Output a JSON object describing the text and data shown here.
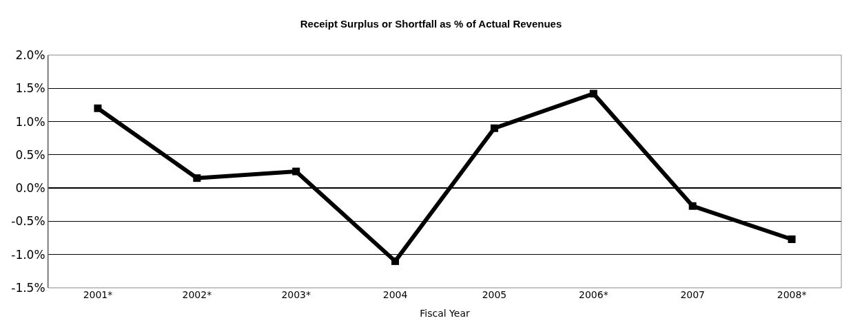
{
  "chart_data": {
    "type": "line",
    "title": "Receipt Surplus or Shortfall as % of Actual Revenues",
    "xlabel": "Fiscal Year",
    "categories": [
      "2001*",
      "2002*",
      "2003*",
      "2004",
      "2005",
      "2006*",
      "2007",
      "2008*"
    ],
    "series": [
      {
        "color": "#000000",
        "values": [
          1.2,
          0.15,
          0.25,
          -1.1,
          0.9,
          1.42,
          -0.27,
          -0.77
        ]
      }
    ],
    "ylim": [
      -1.5,
      2.0
    ],
    "yticks": [
      {
        "value": -1.5,
        "label": "-1.5%"
      },
      {
        "value": -1.0,
        "label": "-1.0%"
      },
      {
        "value": -0.5,
        "label": "-0.5%"
      },
      {
        "value": 0.0,
        "label": "0.0%"
      },
      {
        "value": 0.5,
        "label": "0.5%"
      },
      {
        "value": 1.0,
        "label": "1.0%"
      },
      {
        "value": 1.5,
        "label": "1.5%"
      },
      {
        "value": 2.0,
        "label": "2.0%"
      }
    ],
    "grid": "y",
    "marker": "square",
    "line_style": "solid"
  }
}
